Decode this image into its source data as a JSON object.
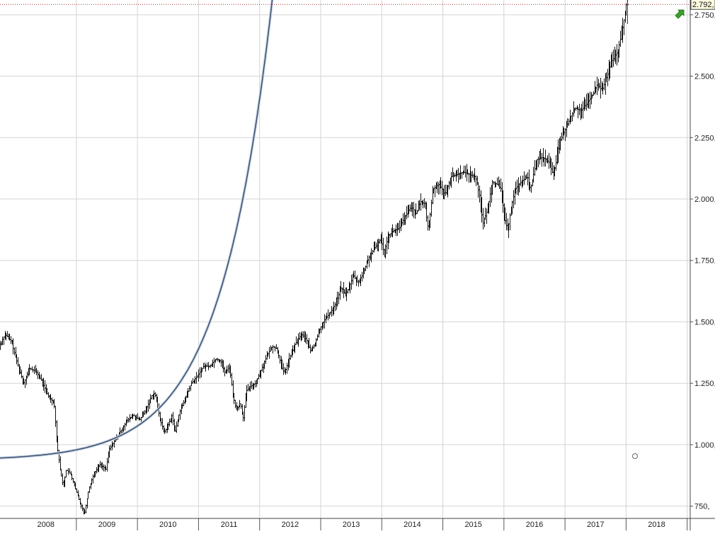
{
  "chart_data": {
    "type": "bar",
    "subtype": "ohlc-weekly",
    "title": "",
    "xlabel": "",
    "ylabel": "",
    "x_tick_labels": [
      "2008",
      "2009",
      "2010",
      "2011",
      "2012",
      "2013",
      "2014",
      "2015",
      "2016",
      "2017",
      "2018"
    ],
    "y_tick_labels": [
      "750,",
      "1.000,",
      "1.250,",
      "1.500,",
      "1.750,",
      "2.000,",
      "2.250,",
      "2.500,",
      "2.750,"
    ],
    "y_ticks": [
      750,
      1000,
      1250,
      1500,
      1750,
      2000,
      2250,
      2500,
      2750
    ],
    "ylim": [
      700,
      2810
    ],
    "xlim": [
      2007.75,
      2019.05
    ],
    "grid": true,
    "last_price_label": "2.792,",
    "last_price": 2792,
    "series": [
      {
        "values": [
          [
            2007.75,
            1400
          ],
          [
            2007.85,
            1450
          ],
          [
            2007.95,
            1420
          ],
          [
            2008.05,
            1330
          ],
          [
            2008.15,
            1250
          ],
          [
            2008.25,
            1310
          ],
          [
            2008.35,
            1300
          ],
          [
            2008.45,
            1260
          ],
          [
            2008.55,
            1200
          ],
          [
            2008.65,
            1170
          ],
          [
            2008.7,
            1000
          ],
          [
            2008.75,
            900
          ],
          [
            2008.8,
            830
          ],
          [
            2008.85,
            900
          ],
          [
            2008.92,
            880
          ],
          [
            2009.0,
            820
          ],
          [
            2009.08,
            760
          ],
          [
            2009.15,
            720
          ],
          [
            2009.22,
            820
          ],
          [
            2009.3,
            880
          ],
          [
            2009.4,
            920
          ],
          [
            2009.5,
            900
          ],
          [
            2009.55,
            980
          ],
          [
            2009.65,
            1020
          ],
          [
            2009.75,
            1060
          ],
          [
            2009.85,
            1100
          ],
          [
            2009.95,
            1120
          ],
          [
            2010.05,
            1100
          ],
          [
            2010.15,
            1140
          ],
          [
            2010.25,
            1200
          ],
          [
            2010.3,
            1210
          ],
          [
            2010.38,
            1110
          ],
          [
            2010.45,
            1050
          ],
          [
            2010.5,
            1070
          ],
          [
            2010.58,
            1120
          ],
          [
            2010.63,
            1050
          ],
          [
            2010.7,
            1130
          ],
          [
            2010.8,
            1190
          ],
          [
            2010.9,
            1250
          ],
          [
            2011.0,
            1280
          ],
          [
            2011.1,
            1320
          ],
          [
            2011.2,
            1320
          ],
          [
            2011.3,
            1350
          ],
          [
            2011.38,
            1340
          ],
          [
            2011.45,
            1290
          ],
          [
            2011.52,
            1320
          ],
          [
            2011.58,
            1200
          ],
          [
            2011.63,
            1140
          ],
          [
            2011.7,
            1170
          ],
          [
            2011.75,
            1110
          ],
          [
            2011.8,
            1220
          ],
          [
            2011.88,
            1240
          ],
          [
            2011.95,
            1250
          ],
          [
            2012.05,
            1310
          ],
          [
            2012.15,
            1370
          ],
          [
            2012.22,
            1400
          ],
          [
            2012.3,
            1390
          ],
          [
            2012.37,
            1320
          ],
          [
            2012.42,
            1290
          ],
          [
            2012.5,
            1350
          ],
          [
            2012.6,
            1410
          ],
          [
            2012.7,
            1450
          ],
          [
            2012.78,
            1430
          ],
          [
            2012.85,
            1380
          ],
          [
            2012.92,
            1410
          ],
          [
            2013.0,
            1470
          ],
          [
            2013.08,
            1510
          ],
          [
            2013.15,
            1530
          ],
          [
            2013.25,
            1570
          ],
          [
            2013.35,
            1640
          ],
          [
            2013.42,
            1610
          ],
          [
            2013.48,
            1640
          ],
          [
            2013.55,
            1690
          ],
          [
            2013.62,
            1660
          ],
          [
            2013.7,
            1690
          ],
          [
            2013.8,
            1760
          ],
          [
            2013.9,
            1800
          ],
          [
            2014.0,
            1840
          ],
          [
            2014.05,
            1780
          ],
          [
            2014.12,
            1850
          ],
          [
            2014.2,
            1870
          ],
          [
            2014.3,
            1880
          ],
          [
            2014.4,
            1930
          ],
          [
            2014.5,
            1970
          ],
          [
            2014.58,
            1940
          ],
          [
            2014.65,
            1990
          ],
          [
            2014.72,
            1980
          ],
          [
            2014.78,
            1870
          ],
          [
            2014.85,
            2040
          ],
          [
            2014.95,
            2060
          ],
          [
            2015.05,
            2020
          ],
          [
            2015.15,
            2090
          ],
          [
            2015.25,
            2100
          ],
          [
            2015.35,
            2110
          ],
          [
            2015.45,
            2100
          ],
          [
            2015.55,
            2090
          ],
          [
            2015.62,
            2010
          ],
          [
            2015.67,
            1900
          ],
          [
            2015.75,
            1960
          ],
          [
            2015.82,
            2070
          ],
          [
            2015.9,
            2060
          ],
          [
            2015.97,
            2040
          ],
          [
            2016.02,
            1930
          ],
          [
            2016.08,
            1870
          ],
          [
            2016.13,
            1960
          ],
          [
            2016.2,
            2040
          ],
          [
            2016.3,
            2070
          ],
          [
            2016.4,
            2090
          ],
          [
            2016.45,
            2040
          ],
          [
            2016.55,
            2160
          ],
          [
            2016.65,
            2170
          ],
          [
            2016.75,
            2150
          ],
          [
            2016.82,
            2100
          ],
          [
            2016.86,
            2140
          ],
          [
            2016.92,
            2230
          ],
          [
            2017.0,
            2270
          ],
          [
            2017.1,
            2330
          ],
          [
            2017.18,
            2370
          ],
          [
            2017.28,
            2360
          ],
          [
            2017.38,
            2390
          ],
          [
            2017.48,
            2430
          ],
          [
            2017.55,
            2470
          ],
          [
            2017.62,
            2440
          ],
          [
            2017.7,
            2500
          ],
          [
            2017.78,
            2560
          ],
          [
            2017.88,
            2600
          ],
          [
            2017.95,
            2680
          ],
          [
            2018.02,
            2792
          ]
        ]
      }
    ]
  }
}
